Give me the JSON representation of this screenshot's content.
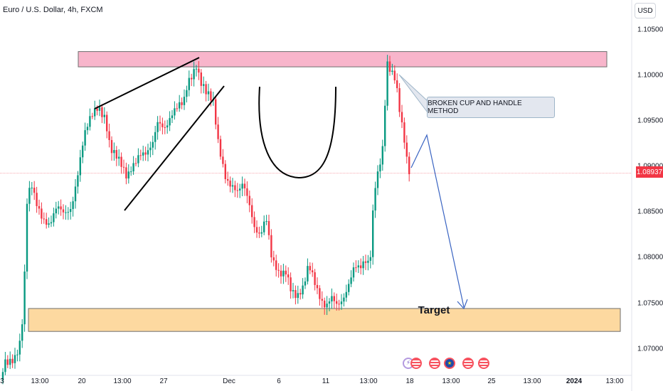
{
  "header": {
    "symbol_title": "Euro / U.S. Dollar, 4h, FXCM",
    "currency_button": "USD"
  },
  "price_axis": {
    "labels": [
      "1.10500",
      "1.10000",
      "1.09500",
      "1.09000",
      "1.08500",
      "1.08000",
      "1.07500",
      "1.07000"
    ],
    "current_price": "1.08937",
    "current_price_color": "#f23645"
  },
  "time_axis": {
    "labels": [
      "3",
      "13:00",
      "20",
      "13:00",
      "27",
      "Dec",
      "6",
      "11",
      "13:00",
      "18",
      "13:00",
      "25",
      "13:00",
      "2024",
      "13:00"
    ],
    "bold_label": "2024"
  },
  "annotations": {
    "callout_text": "BROKEN CUP AND HANDLE METHOD",
    "target_label": "Target",
    "resistance_zone_color": "#f8b5cb",
    "target_zone_color": "#fdd9a0",
    "projection_arrow_color": "#3a64c2"
  },
  "candle_colors": {
    "up": "#089981",
    "down": "#f23645"
  },
  "event_icons": [
    "flash-icon",
    "flag-us-icon",
    "flag-us-icon",
    "flag-eu-icon",
    "flag-us-icon",
    "flag-us-icon"
  ],
  "chart_data": {
    "type": "candlestick",
    "title": "Euro / U.S. Dollar, 4h, FXCM",
    "ylim": [
      1.0682,
      1.1075
    ],
    "resistance_zone": [
      1.1005,
      1.1021
    ],
    "target_zone": [
      1.0728,
      1.0752
    ],
    "last_price": 1.08937,
    "close_path": [
      [
        0,
        1.0668
      ],
      [
        6,
        1.0695
      ],
      [
        14,
        1.07
      ],
      [
        22,
        1.0705
      ],
      [
        30,
        1.072
      ],
      [
        35,
        1.079
      ],
      [
        38,
        1.086
      ],
      [
        44,
        1.088
      ],
      [
        50,
        1.0865
      ],
      [
        60,
        1.085
      ],
      [
        70,
        1.084
      ],
      [
        80,
        1.0855
      ],
      [
        90,
        1.085
      ],
      [
        100,
        1.086
      ],
      [
        108,
        1.089
      ],
      [
        118,
        1.093
      ],
      [
        128,
        1.095
      ],
      [
        138,
        1.0965
      ],
      [
        148,
        1.0955
      ],
      [
        155,
        1.092
      ],
      [
        162,
        1.091
      ],
      [
        170,
        1.09
      ],
      [
        178,
        1.089
      ],
      [
        186,
        1.0905
      ],
      [
        196,
        1.0915
      ],
      [
        206,
        1.091
      ],
      [
        214,
        1.092
      ],
      [
        222,
        1.095
      ],
      [
        232,
        1.0945
      ],
      [
        242,
        1.0955
      ],
      [
        250,
        1.096
      ],
      [
        258,
        1.0965
      ],
      [
        264,
        1.099
      ],
      [
        270,
        1.1
      ],
      [
        276,
        1.101
      ],
      [
        282,
        1.099
      ],
      [
        290,
        1.0975
      ],
      [
        300,
        1.0965
      ],
      [
        306,
        1.093
      ],
      [
        312,
        1.091
      ],
      [
        318,
        1.089
      ],
      [
        326,
        1.088
      ],
      [
        334,
        1.087
      ],
      [
        342,
        1.088
      ],
      [
        350,
        1.0865
      ],
      [
        358,
        1.084
      ],
      [
        366,
        1.083
      ],
      [
        374,
        1.0845
      ],
      [
        382,
        1.08
      ],
      [
        392,
        1.079
      ],
      [
        402,
        1.0795
      ],
      [
        410,
        1.077
      ],
      [
        418,
        1.076
      ],
      [
        426,
        1.077
      ],
      [
        434,
        1.08
      ],
      [
        440,
        1.079
      ],
      [
        446,
        1.0775
      ],
      [
        452,
        1.076
      ],
      [
        458,
        1.075
      ],
      [
        466,
        1.076
      ],
      [
        474,
        1.0755
      ],
      [
        482,
        1.0765
      ],
      [
        490,
        1.078
      ],
      [
        498,
        1.0795
      ],
      [
        506,
        1.079
      ],
      [
        514,
        1.08
      ],
      [
        520,
        1.08
      ],
      [
        526,
        1.088
      ],
      [
        532,
        1.09
      ],
      [
        538,
        1.092
      ],
      [
        544,
        1.1005
      ],
      [
        550,
        1.0995
      ],
      [
        556,
        1.099
      ],
      [
        562,
        1.096
      ],
      [
        568,
        1.0935
      ],
      [
        574,
        1.09
      ],
      [
        578,
        1.0894
      ]
    ]
  }
}
